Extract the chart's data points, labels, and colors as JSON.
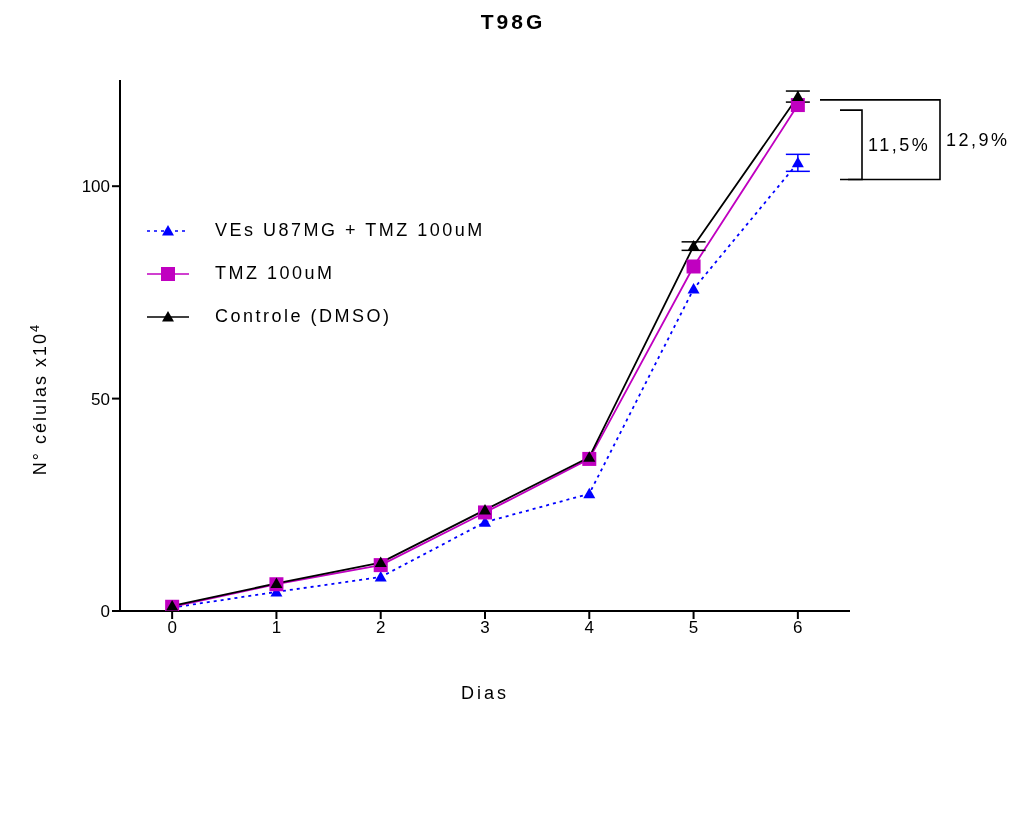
{
  "chart_data": {
    "type": "line",
    "title": "T98G",
    "xlabel": "Dias",
    "ylabel": "N° células x10$^{4}$",
    "x": [
      0,
      1,
      2,
      3,
      4,
      5,
      6
    ],
    "xlim": [
      -0.5,
      6.5
    ],
    "xticks": [
      0,
      1,
      2,
      3,
      4,
      5,
      6
    ],
    "ylim": [
      0,
      125
    ],
    "yticks": [
      0,
      50,
      100
    ],
    "grid": false,
    "legend": "top left",
    "series": [
      {
        "name": "VEs U87MG + TMZ 100uM",
        "color": "#0000ff",
        "marker": "triangle",
        "line_style": "dotted",
        "values": [
          0.8,
          4.5,
          8,
          20.9,
          27.6,
          75.8,
          105.5
        ],
        "errors": [
          null,
          null,
          null,
          null,
          null,
          null,
          2
        ]
      },
      {
        "name": "TMZ 100uM",
        "color": "#c000c0",
        "marker": "square",
        "line_style": "solid",
        "values": [
          1,
          6.3,
          10.8,
          23.2,
          35.8,
          81.1,
          119.1
        ],
        "errors": [
          null,
          null,
          null,
          null,
          null,
          null,
          null
        ]
      },
      {
        "name": "Controle (DMSO)",
        "color": "#000000",
        "marker": "triangle",
        "line_style": "solid",
        "values": [
          1.2,
          6.5,
          11.4,
          23.8,
          36.2,
          85.9,
          121.1
        ],
        "errors": [
          null,
          null,
          null,
          null,
          null,
          1,
          1.3
        ]
      }
    ],
    "annotations": [
      "11,5%",
      "12,9%"
    ]
  }
}
